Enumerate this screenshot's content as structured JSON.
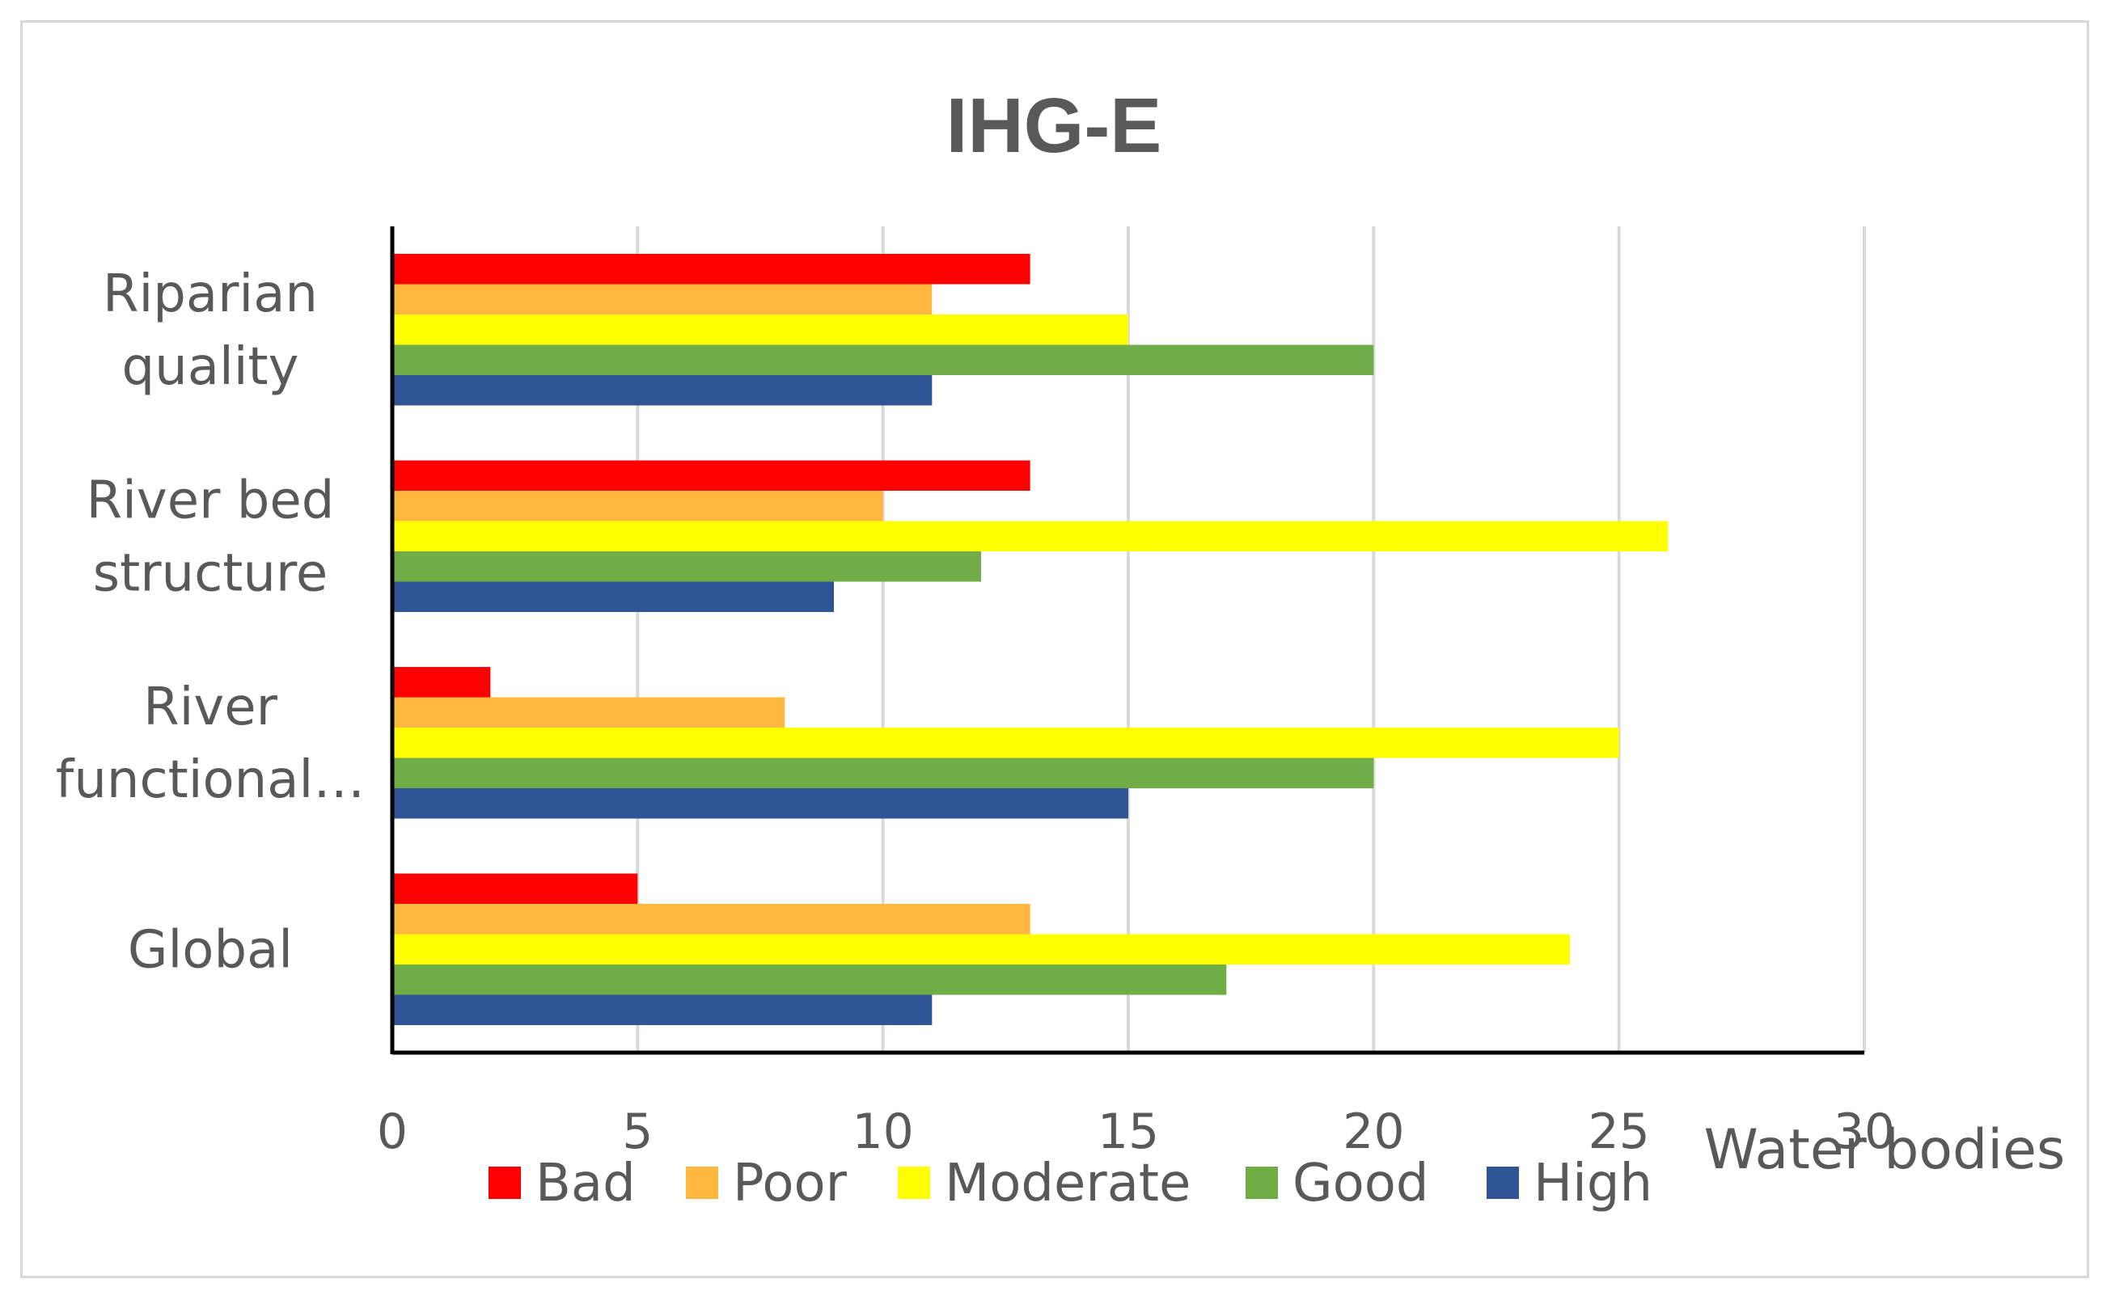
{
  "chart_data": {
    "type": "bar",
    "orientation": "horizontal",
    "title": "IHG-E",
    "xlabel": "Water bodies",
    "ylabel": "",
    "xlim": [
      0,
      30
    ],
    "x_ticks": [
      0,
      5,
      10,
      15,
      20,
      25,
      30
    ],
    "grid": true,
    "legend_position": "bottom",
    "categories": [
      [
        "Riparian",
        "quality"
      ],
      [
        "River bed",
        "structure"
      ],
      [
        "River",
        "functional…"
      ],
      [
        "Global"
      ]
    ],
    "series": [
      {
        "name": "Bad",
        "color": "#ff0000",
        "values": [
          13,
          13,
          2,
          5
        ]
      },
      {
        "name": "Poor",
        "color": "#ffb83f",
        "values": [
          11,
          10,
          8,
          13
        ]
      },
      {
        "name": "Moderate",
        "color": "#ffff00",
        "values": [
          15,
          26,
          25,
          24
        ]
      },
      {
        "name": "Good",
        "color": "#70ad47",
        "values": [
          20,
          12,
          20,
          17
        ]
      },
      {
        "name": "High",
        "color": "#2f5597",
        "values": [
          11,
          9,
          15,
          11
        ]
      }
    ],
    "colors": {
      "grid": "#d9d9d9",
      "axis": "#000000",
      "text": "#595959",
      "border": "#d9d9d9"
    }
  }
}
